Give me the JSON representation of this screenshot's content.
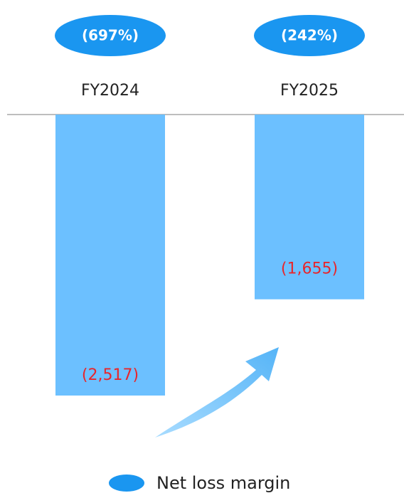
{
  "chart_data": {
    "type": "bar",
    "categories": [
      "FY2024",
      "FY2025"
    ],
    "series": [
      {
        "color": "#6cc0ff",
        "values": [
          -2517,
          -1655
        ],
        "value_labels": [
          "(2,517)",
          "(1,655)"
        ]
      },
      {
        "name": "Net loss margin",
        "color": "#1a96f0",
        "values": [
          -697,
          -242
        ],
        "value_labels": [
          "(697%)",
          "(242%)"
        ]
      }
    ]
  }
}
